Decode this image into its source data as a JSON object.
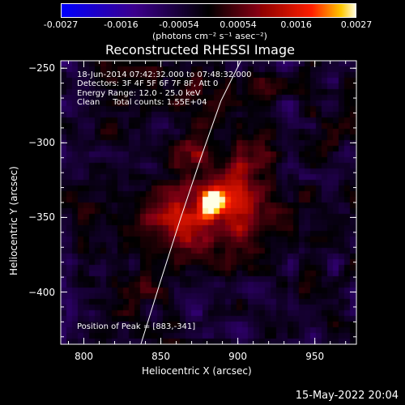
{
  "colorbar": {
    "ticks": [
      "-0.0027",
      "-0.0016",
      "-0.00054",
      "0.00054",
      "0.0016",
      "0.0027"
    ],
    "label": "(photons cm⁻² s⁻¹ asec⁻²)",
    "range": [
      -0.0027,
      0.0027
    ]
  },
  "annotation": {
    "time": "18-Jun-2014 07:42:32.000 to 07:48:32.000",
    "detectors": "Detectors: 3F 4F 5F 6F 7F 8F, Att 0",
    "energy": "Energy Range: 12.0 - 25.0 keV",
    "clean": "Clean     Total counts: 1.55E+04",
    "peak": "Position of Peak = [883,-341]"
  },
  "footer_date": "15-May-2022 20:04",
  "chart_data": {
    "type": "heatmap",
    "title": "Reconstructed RHESSI Image",
    "xlabel": "Heliocentric X (arcsec)",
    "ylabel": "Heliocentric Y (arcsec)",
    "xlim": [
      785,
      977
    ],
    "ylim": [
      -435,
      -245
    ],
    "xticks": [
      "800",
      "850",
      "900",
      "950"
    ],
    "xtick_values": [
      800,
      850,
      900,
      950
    ],
    "yticks": [
      "-250",
      "-300",
      "-350",
      "-400"
    ],
    "ytick_values": [
      -250,
      -300,
      -350,
      -400
    ],
    "peak": {
      "x": 883,
      "y": -341
    },
    "colormap": "flame",
    "colors": {
      "low": "#0000ff",
      "mid": "#000000",
      "high": "#ffff00"
    },
    "limb_curve": {
      "x": [
        837,
        850,
        863,
        876,
        889,
        902,
        915
      ],
      "y": [
        -435,
        -392,
        -350,
        -310,
        -272,
        -236,
        -200
      ]
    }
  }
}
